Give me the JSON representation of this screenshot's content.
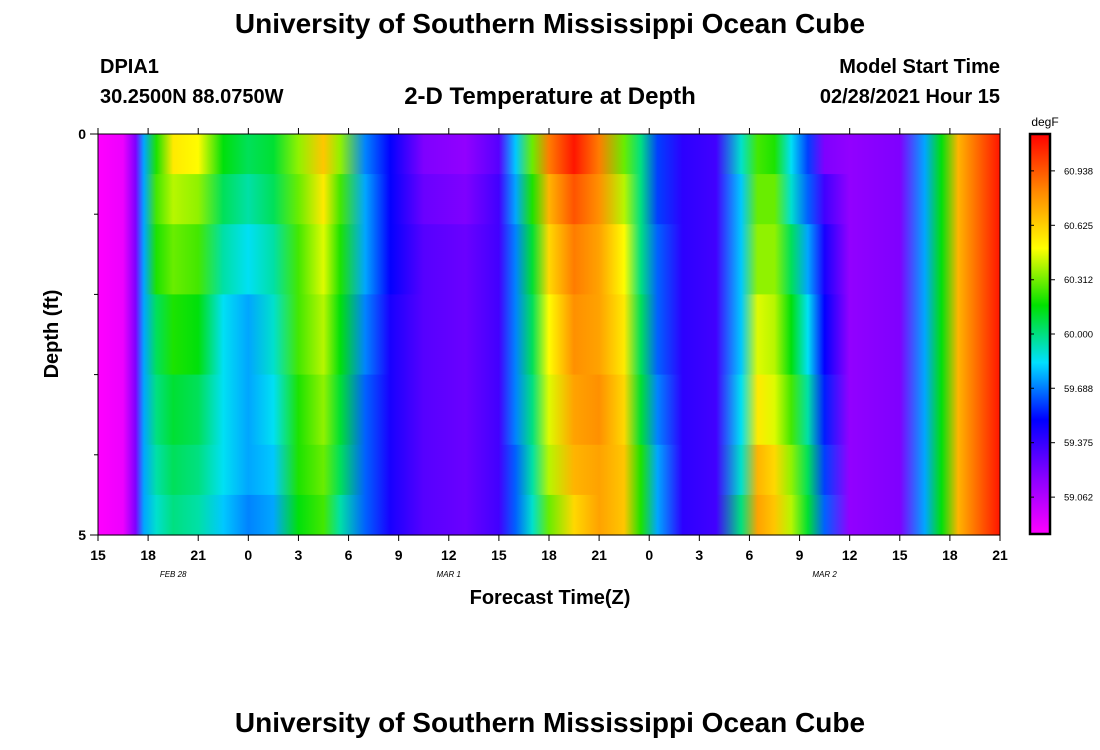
{
  "header": {
    "title": "University of Southern Mississippi Ocean Cube",
    "station_id": "DPIA1",
    "coords": "30.2500N 88.0750W",
    "subtitle": "2-D Temperature at Depth",
    "model_label": "Model Start Time",
    "model_time": "02/28/2021 Hour 15"
  },
  "footer": {
    "title": "University of Southern Mississippi Ocean Cube"
  },
  "chart_data": {
    "type": "heatmap",
    "title": "2-D Temperature at Depth",
    "xlabel": "Forecast Time(Z)",
    "ylabel": "Depth (ft)",
    "colorbar_label": "degF",
    "x_tick_labels": [
      "15",
      "18",
      "21",
      "0",
      "3",
      "6",
      "9",
      "12",
      "15",
      "18",
      "21",
      "0",
      "3",
      "6",
      "9",
      "12",
      "15",
      "18",
      "21"
    ],
    "date_labels": [
      {
        "text": "FEB 28",
        "hour": 4.5
      },
      {
        "text": "MAR 1",
        "hour": 21
      },
      {
        "text": "MAR 2",
        "hour": 43.5
      }
    ],
    "x_range_hours": [
      0,
      54
    ],
    "y_tick_labels": [
      "0",
      "5"
    ],
    "y_range_ft": [
      0,
      5
    ],
    "y_minor_ticks_ft": [
      1,
      2,
      3,
      4
    ],
    "colorbar_ticks": [
      "60.938",
      "60.625",
      "60.312",
      "60.000",
      "59.688",
      "59.375",
      "59.062"
    ],
    "colorbar_range": [
      58.85,
      61.15
    ],
    "colorscale": [
      "#ff00ff",
      "#8800ff",
      "#0000ff",
      "#00e0ff",
      "#00e000",
      "#ffff00",
      "#ff8800",
      "#ff0000"
    ],
    "depth_rows_ft": [
      0.25,
      0.75,
      1.5,
      2.5,
      3.5,
      4.25,
      4.75
    ],
    "time_columns": [
      {
        "hour": 0,
        "temps": [
          58.85
        ]
      },
      {
        "hour": 1.5,
        "temps": [
          58.9
        ]
      },
      {
        "hour": 2.25,
        "temps": [
          59.2
        ]
      },
      {
        "hour": 2.75,
        "temps": [
          59.75
        ]
      },
      {
        "hour": 3.5,
        "temps": [
          60.2,
          60.25,
          60.2,
          60.05,
          60.0,
          59.95,
          59.9
        ]
      },
      {
        "hour": 4.5,
        "temps": [
          60.55,
          60.4,
          60.3,
          60.2,
          60.1,
          60.05,
          60.0
        ]
      },
      {
        "hour": 6,
        "temps": [
          60.5,
          60.35,
          60.25,
          60.15,
          60.05,
          60.0,
          59.95
        ]
      },
      {
        "hour": 7.5,
        "temps": [
          60.15,
          60.05,
          59.95,
          59.85,
          59.85,
          59.85,
          59.8
        ]
      },
      {
        "hour": 9,
        "temps": [
          60.05,
          59.95,
          59.85,
          59.75,
          59.75,
          59.75,
          59.7
        ]
      },
      {
        "hour": 10.5,
        "temps": [
          60.1,
          60.05,
          59.95,
          59.9,
          59.85,
          59.8,
          59.75
        ]
      },
      {
        "hour": 12,
        "temps": [
          60.35,
          60.3,
          60.25,
          60.25,
          60.2,
          60.2,
          60.15
        ]
      },
      {
        "hour": 13.5,
        "temps": [
          60.65,
          60.55,
          60.45,
          60.4,
          60.35,
          60.3,
          60.25
        ]
      },
      {
        "hour": 14.5,
        "temps": [
          60.35,
          60.25,
          60.2,
          60.15,
          60.1,
          60.05,
          59.95
        ]
      },
      {
        "hour": 16,
        "temps": [
          59.7,
          59.75,
          59.75,
          59.7,
          59.65,
          59.65,
          59.65
        ]
      },
      {
        "hour": 17.5,
        "temps": [
          59.5,
          59.5,
          59.5,
          59.45,
          59.45,
          59.45,
          59.45
        ]
      },
      {
        "hour": 19.5,
        "temps": [
          59.2,
          59.25,
          59.3,
          59.3,
          59.3,
          59.3,
          59.3
        ]
      },
      {
        "hour": 22,
        "temps": [
          59.15,
          59.2,
          59.25,
          59.25,
          59.25,
          59.25,
          59.25
        ]
      },
      {
        "hour": 24,
        "temps": [
          59.3,
          59.35,
          59.35,
          59.35,
          59.35,
          59.35,
          59.35
        ]
      },
      {
        "hour": 25,
        "temps": [
          59.8,
          59.75,
          59.7,
          59.7,
          59.7,
          59.65,
          59.65
        ]
      },
      {
        "hour": 26,
        "temps": [
          60.3,
          60.2,
          60.1,
          60.05,
          60.0,
          59.95,
          59.9
        ]
      },
      {
        "hour": 27,
        "temps": [
          60.85,
          60.7,
          60.6,
          60.5,
          60.45,
          60.4,
          60.3
        ]
      },
      {
        "hour": 28.5,
        "temps": [
          61.1,
          60.95,
          60.85,
          60.8,
          60.75,
          60.7,
          60.6
        ]
      },
      {
        "hour": 30,
        "temps": [
          60.85,
          60.8,
          60.75,
          60.75,
          60.8,
          60.75,
          60.75
        ]
      },
      {
        "hour": 31.5,
        "temps": [
          60.3,
          60.4,
          60.5,
          60.55,
          60.6,
          60.65,
          60.65
        ]
      },
      {
        "hour": 32.5,
        "temps": [
          60.0,
          60.0,
          60.0,
          60.05,
          60.1,
          60.2,
          60.2
        ]
      },
      {
        "hour": 33.5,
        "temps": [
          59.6,
          59.6,
          59.65,
          59.65,
          59.7,
          59.75,
          59.75
        ]
      },
      {
        "hour": 35,
        "temps": [
          59.4,
          59.4,
          59.4,
          59.4,
          59.4,
          59.4,
          59.4
        ]
      },
      {
        "hour": 37,
        "temps": [
          59.35
        ]
      },
      {
        "hour": 38.5,
        "temps": [
          59.9,
          59.8,
          59.8,
          59.8,
          59.85,
          59.9,
          60.0
        ]
      },
      {
        "hour": 39.5,
        "temps": [
          60.25,
          60.3,
          60.35,
          60.45,
          60.55,
          60.7,
          60.75
        ]
      },
      {
        "hour": 40.5,
        "temps": [
          60.2,
          60.3,
          60.35,
          60.4,
          60.45,
          60.6,
          60.65
        ]
      },
      {
        "hour": 41.5,
        "temps": [
          59.85,
          59.9,
          60.05,
          60.15,
          60.25,
          60.35,
          60.4
        ]
      },
      {
        "hour": 42.5,
        "temps": [
          59.6,
          59.65,
          59.75,
          59.85,
          59.95,
          60.05,
          60.1
        ]
      },
      {
        "hour": 43.5,
        "temps": [
          59.2,
          59.35,
          59.45,
          59.5,
          59.55,
          59.6,
          59.65
        ]
      },
      {
        "hour": 45,
        "temps": [
          59.15,
          59.15,
          59.15,
          59.15,
          59.15,
          59.15,
          59.15
        ]
      },
      {
        "hour": 48,
        "temps": [
          59.2
        ]
      },
      {
        "hour": 49.5,
        "temps": [
          59.75
        ]
      },
      {
        "hour": 50.5,
        "temps": [
          60.15
        ]
      },
      {
        "hour": 51.5,
        "temps": [
          60.7
        ]
      },
      {
        "hour": 53,
        "temps": [
          60.95
        ]
      },
      {
        "hour": 54,
        "temps": [
          61.1
        ]
      }
    ]
  }
}
